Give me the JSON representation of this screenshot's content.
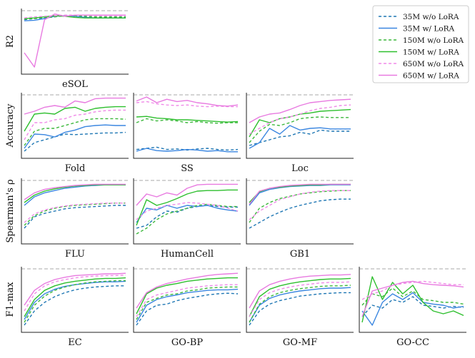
{
  "chart_data": {
    "type": "line",
    "legend": [
      {
        "name": "35M w/o LoRA",
        "color": "#1f77b4",
        "dashed": true
      },
      {
        "name": "35M w/ LoRA",
        "color": "#3a86e0",
        "dashed": false
      },
      {
        "name": "150M w/o LoRA",
        "color": "#3cb83c",
        "dashed": true
      },
      {
        "name": "150M w/ LoRA",
        "color": "#2ebf2e",
        "dashed": false
      },
      {
        "name": "650M w/o LoRA",
        "color": "#f08ae8",
        "dashed": true
      },
      {
        "name": "650M w/ LoRA",
        "color": "#e87ae0",
        "dashed": false
      }
    ],
    "rows": [
      {
        "ylabel": "R2",
        "panels": [
          "eSOL"
        ]
      },
      {
        "ylabel": "Accuracy",
        "panels": [
          "Fold",
          "SS",
          "Loc"
        ]
      },
      {
        "ylabel": "Spearman's ρ",
        "panels": [
          "FLU",
          "HumanCell",
          "GB1"
        ]
      },
      {
        "ylabel": "F1-max",
        "panels": [
          "EC",
          "GO-BP",
          "GO-MF",
          "GO-CC"
        ]
      }
    ],
    "panels": {
      "eSOL": {
        "series": [
          [
            0.88,
            0.9,
            0.91,
            0.93,
            0.95,
            0.94,
            0.93,
            0.92,
            0.92,
            0.92,
            0.92
          ],
          [
            0.86,
            0.87,
            0.9,
            0.94,
            0.95,
            0.94,
            0.92,
            0.91,
            0.91,
            0.91,
            0.91
          ],
          [
            0.89,
            0.9,
            0.92,
            0.93,
            0.95,
            0.95,
            0.94,
            0.93,
            0.93,
            0.93,
            0.93
          ],
          [
            0.9,
            0.91,
            0.93,
            0.95,
            0.94,
            0.92,
            0.91,
            0.91,
            0.91,
            0.91,
            0.91
          ],
          [
            0.91,
            0.93,
            0.94,
            0.95,
            0.96,
            0.96,
            0.96,
            0.95,
            0.95,
            0.95,
            0.95
          ],
          [
            0.3,
            0.05,
            0.88,
            0.98,
            0.94,
            0.96,
            0.96,
            0.96,
            0.96,
            0.96,
            0.96
          ]
        ]
      },
      "Fold": {
        "series": [
          [
            0.05,
            0.2,
            0.25,
            0.3,
            0.35,
            0.34,
            0.35,
            0.36,
            0.37,
            0.37,
            0.38
          ],
          [
            0.1,
            0.35,
            0.34,
            0.3,
            0.38,
            0.42,
            0.48,
            0.5,
            0.51,
            0.5,
            0.5
          ],
          [
            0.15,
            0.4,
            0.45,
            0.45,
            0.5,
            0.55,
            0.6,
            0.62,
            0.62,
            0.62,
            0.61
          ],
          [
            0.4,
            0.7,
            0.72,
            0.7,
            0.8,
            0.82,
            0.75,
            0.8,
            0.82,
            0.83,
            0.83
          ],
          [
            0.25,
            0.55,
            0.55,
            0.6,
            0.62,
            0.68,
            0.7,
            0.74,
            0.76,
            0.77,
            0.77
          ],
          [
            0.7,
            0.75,
            0.82,
            0.85,
            0.82,
            0.93,
            0.9,
            0.97,
            0.98,
            0.98,
            0.98
          ]
        ]
      },
      "SS": {
        "series": [
          [
            0.08,
            0.1,
            0.12,
            0.08,
            0.09,
            0.07,
            0.09,
            0.1,
            0.08,
            0.07,
            0.08
          ],
          [
            0.05,
            0.1,
            0.06,
            0.05,
            0.06,
            0.08,
            0.07,
            0.05,
            0.06,
            0.04,
            0.04
          ],
          [
            0.55,
            0.62,
            0.58,
            0.6,
            0.58,
            0.55,
            0.57,
            0.55,
            0.54,
            0.55,
            0.55
          ],
          [
            0.65,
            0.66,
            0.63,
            0.62,
            0.6,
            0.6,
            0.59,
            0.58,
            0.57,
            0.56,
            0.57
          ],
          [
            0.9,
            0.92,
            0.88,
            0.86,
            0.85,
            0.86,
            0.84,
            0.83,
            0.84,
            0.83,
            0.83
          ],
          [
            0.93,
            1.0,
            0.9,
            0.96,
            0.92,
            0.94,
            0.9,
            0.88,
            0.85,
            0.84,
            0.86
          ]
        ]
      },
      "Loc": {
        "series": [
          [
            0.15,
            0.2,
            0.25,
            0.3,
            0.32,
            0.38,
            0.35,
            0.42,
            0.4,
            0.4,
            0.4
          ],
          [
            0.1,
            0.2,
            0.45,
            0.35,
            0.5,
            0.42,
            0.45,
            0.46,
            0.44,
            0.44,
            0.44
          ],
          [
            0.2,
            0.4,
            0.52,
            0.5,
            0.55,
            0.62,
            0.64,
            0.65,
            0.64,
            0.64,
            0.64
          ],
          [
            0.3,
            0.6,
            0.55,
            0.62,
            0.65,
            0.7,
            0.72,
            0.75,
            0.76,
            0.77,
            0.78
          ],
          [
            0.35,
            0.45,
            0.55,
            0.62,
            0.65,
            0.7,
            0.76,
            0.8,
            0.82,
            0.85,
            0.86
          ],
          [
            0.55,
            0.65,
            0.7,
            0.72,
            0.78,
            0.85,
            0.9,
            0.92,
            0.94,
            0.95,
            0.96
          ]
        ]
      },
      "FLU": {
        "series": [
          [
            0.2,
            0.4,
            0.46,
            0.5,
            0.54,
            0.56,
            0.57,
            0.58,
            0.59,
            0.6,
            0.6
          ],
          [
            0.6,
            0.75,
            0.82,
            0.86,
            0.9,
            0.92,
            0.94,
            0.95,
            0.96,
            0.96,
            0.96
          ],
          [
            0.25,
            0.42,
            0.5,
            0.55,
            0.58,
            0.6,
            0.61,
            0.62,
            0.63,
            0.64,
            0.64
          ],
          [
            0.65,
            0.78,
            0.85,
            0.89,
            0.92,
            0.94,
            0.95,
            0.96,
            0.96,
            0.96,
            0.96
          ],
          [
            0.3,
            0.45,
            0.52,
            0.56,
            0.59,
            0.61,
            0.62,
            0.63,
            0.64,
            0.64,
            0.64
          ],
          [
            0.7,
            0.82,
            0.88,
            0.91,
            0.93,
            0.95,
            0.96,
            0.97,
            0.97,
            0.97,
            0.97
          ]
        ]
      },
      "HumanCell": {
        "series": [
          [
            0.2,
            0.25,
            0.4,
            0.5,
            0.48,
            0.55,
            0.58,
            0.6,
            0.58,
            0.57,
            0.57
          ],
          [
            0.3,
            0.55,
            0.52,
            0.6,
            0.55,
            0.6,
            0.58,
            0.6,
            0.55,
            0.52,
            0.5
          ],
          [
            0.1,
            0.2,
            0.35,
            0.45,
            0.5,
            0.55,
            0.6,
            0.62,
            0.6,
            0.58,
            0.58
          ],
          [
            0.25,
            0.7,
            0.6,
            0.65,
            0.72,
            0.8,
            0.85,
            0.86,
            0.86,
            0.87,
            0.87
          ],
          [
            0.35,
            0.5,
            0.55,
            0.6,
            0.62,
            0.65,
            0.64,
            0.62,
            0.6,
            0.55,
            0.5
          ],
          [
            0.6,
            0.8,
            0.75,
            0.82,
            0.78,
            0.9,
            0.96,
            0.97,
            0.97,
            0.97,
            0.97
          ]
        ]
      },
      "GB1": {
        "series": [
          [
            0.2,
            0.3,
            0.4,
            0.48,
            0.55,
            0.6,
            0.64,
            0.68,
            0.7,
            0.71,
            0.71
          ],
          [
            0.6,
            0.82,
            0.88,
            0.91,
            0.93,
            0.94,
            0.95,
            0.95,
            0.96,
            0.96,
            0.96
          ],
          [
            0.3,
            0.55,
            0.65,
            0.72,
            0.76,
            0.8,
            0.82,
            0.84,
            0.85,
            0.86,
            0.86
          ],
          [
            0.65,
            0.84,
            0.9,
            0.92,
            0.94,
            0.95,
            0.96,
            0.96,
            0.97,
            0.97,
            0.97
          ],
          [
            0.35,
            0.5,
            0.6,
            0.7,
            0.75,
            0.8,
            0.83,
            0.85,
            0.86,
            0.86,
            0.86
          ],
          [
            0.62,
            0.85,
            0.9,
            0.93,
            0.95,
            0.96,
            0.97,
            0.97,
            0.97,
            0.97,
            0.97
          ]
        ]
      },
      "EC": {
        "series": [
          [
            0.05,
            0.3,
            0.45,
            0.55,
            0.62,
            0.67,
            0.7,
            0.72,
            0.73,
            0.74,
            0.74
          ],
          [
            0.15,
            0.45,
            0.6,
            0.68,
            0.73,
            0.76,
            0.78,
            0.8,
            0.81,
            0.81,
            0.82
          ],
          [
            0.1,
            0.4,
            0.56,
            0.66,
            0.72,
            0.76,
            0.79,
            0.81,
            0.82,
            0.83,
            0.83
          ],
          [
            0.2,
            0.5,
            0.66,
            0.74,
            0.79,
            0.82,
            0.84,
            0.86,
            0.87,
            0.87,
            0.88
          ],
          [
            0.3,
            0.6,
            0.74,
            0.81,
            0.85,
            0.88,
            0.9,
            0.91,
            0.92,
            0.92,
            0.93
          ],
          [
            0.4,
            0.66,
            0.78,
            0.85,
            0.89,
            0.92,
            0.93,
            0.94,
            0.95,
            0.95,
            0.96
          ]
        ]
      },
      "GO-BP": {
        "series": [
          [
            0.05,
            0.3,
            0.4,
            0.42,
            0.48,
            0.52,
            0.55,
            0.58,
            0.6,
            0.61,
            0.6
          ],
          [
            0.1,
            0.4,
            0.5,
            0.55,
            0.58,
            0.62,
            0.64,
            0.66,
            0.67,
            0.67,
            0.68
          ],
          [
            0.15,
            0.45,
            0.52,
            0.58,
            0.6,
            0.65,
            0.67,
            0.7,
            0.71,
            0.72,
            0.72
          ],
          [
            0.25,
            0.6,
            0.7,
            0.75,
            0.78,
            0.82,
            0.84,
            0.86,
            0.87,
            0.88,
            0.88
          ],
          [
            0.2,
            0.5,
            0.58,
            0.62,
            0.66,
            0.7,
            0.72,
            0.74,
            0.75,
            0.76,
            0.76
          ],
          [
            0.35,
            0.62,
            0.72,
            0.78,
            0.82,
            0.86,
            0.89,
            0.92,
            0.94,
            0.95,
            0.96
          ]
        ]
      },
      "GO-MF": {
        "series": [
          [
            0.05,
            0.3,
            0.42,
            0.48,
            0.52,
            0.56,
            0.58,
            0.6,
            0.61,
            0.62,
            0.62
          ],
          [
            0.1,
            0.4,
            0.52,
            0.58,
            0.62,
            0.65,
            0.67,
            0.69,
            0.7,
            0.7,
            0.71
          ],
          [
            0.1,
            0.42,
            0.55,
            0.62,
            0.66,
            0.69,
            0.71,
            0.73,
            0.74,
            0.74,
            0.75
          ],
          [
            0.2,
            0.55,
            0.68,
            0.74,
            0.78,
            0.81,
            0.83,
            0.85,
            0.86,
            0.86,
            0.87
          ],
          [
            0.2,
            0.5,
            0.62,
            0.68,
            0.72,
            0.75,
            0.77,
            0.79,
            0.8,
            0.8,
            0.81
          ],
          [
            0.35,
            0.65,
            0.76,
            0.82,
            0.86,
            0.89,
            0.91,
            0.92,
            0.93,
            0.93,
            0.94
          ]
        ]
      },
      "GO-CC": {
        "series": [
          [
            0.2,
            0.4,
            0.35,
            0.5,
            0.45,
            0.55,
            0.4,
            0.38,
            0.35,
            0.38,
            0.36
          ],
          [
            0.3,
            0.05,
            0.45,
            0.6,
            0.5,
            0.62,
            0.45,
            0.42,
            0.4,
            0.35,
            0.38
          ],
          [
            0.4,
            0.6,
            0.55,
            0.7,
            0.55,
            0.65,
            0.5,
            0.48,
            0.45,
            0.45,
            0.42
          ],
          [
            0.1,
            0.9,
            0.5,
            0.8,
            0.6,
            0.75,
            0.45,
            0.3,
            0.25,
            0.3,
            0.22
          ],
          [
            0.5,
            0.6,
            0.65,
            0.75,
            0.78,
            0.8,
            0.82,
            0.8,
            0.78,
            0.76,
            0.76
          ],
          [
            0.2,
            0.65,
            0.7,
            0.75,
            0.8,
            0.82,
            0.78,
            0.76,
            0.75,
            0.74,
            0.72
          ]
        ]
      }
    },
    "ylim": [
      0,
      1
    ],
    "reference_line": 1.0
  }
}
